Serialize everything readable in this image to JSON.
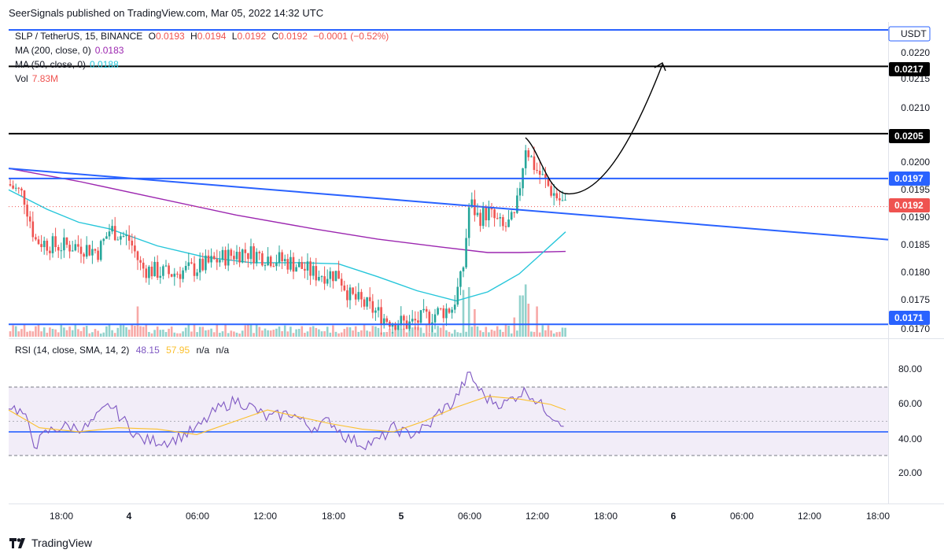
{
  "header": {
    "publisher": "SeerSignals published on TradingView.com, Mar 05, 2022 14:32 UTC"
  },
  "legend": {
    "symbol": "SLP / TetherUS, 15, BINANCE",
    "o_label": "O",
    "o_value": "0.0193",
    "h_label": "H",
    "h_value": "0.0194",
    "l_label": "L",
    "l_value": "0.0192",
    "c_label": "C",
    "c_value": "0.0192",
    "change": "−0.0001 (−0.52%)",
    "ma200_label": "MA (200, close, 0)",
    "ma200_value": "0.0183",
    "ma50_label": "MA (50, close, 0)",
    "ma50_value": "0.0188",
    "vol_label": "Vol",
    "vol_value": "7.83M"
  },
  "rsi_legend": {
    "label": "RSI (14, close, SMA, 14, 2)",
    "rsi_value": "48.15",
    "sma_value": "57.95",
    "na1": "n/a",
    "na2": "n/a"
  },
  "price_axis": {
    "currency": "USDT",
    "ticks": [
      "0.0220",
      "0.0215",
      "0.0210",
      "0.0200",
      "0.0195",
      "0.0190",
      "0.0185",
      "0.0180",
      "0.0175",
      "0.0170"
    ],
    "level_labels": [
      "0.0217",
      "0.0205",
      "0.0197",
      "0.0192",
      "0.0171"
    ]
  },
  "rsi_axis": {
    "ticks": [
      "80.00",
      "60.00",
      "40.00",
      "20.00"
    ]
  },
  "time_axis": {
    "labels": [
      "18:00",
      "4",
      "06:00",
      "12:00",
      "18:00",
      "5",
      "06:00",
      "12:00",
      "18:00",
      "6",
      "06:00",
      "12:00",
      "18:00"
    ]
  },
  "footer": {
    "brand": "TradingView"
  },
  "colors": {
    "up": "#26a69a",
    "down": "#ef5350",
    "ma200": "#9c27b0",
    "ma50": "#26c6da",
    "blue_lines": "#2962ff",
    "black_lines": "#000000",
    "rsi": "#7e57c2",
    "rsi_sma": "#fbc02d",
    "rsi_band": "#ede7f6"
  },
  "chart_data": {
    "type": "candlestick",
    "symbol": "SLP / TetherUS",
    "interval": "15",
    "price_range": [
      0.01695,
      0.02235
    ],
    "rsi_range": [
      0,
      100
    ],
    "horizontal_levels": [
      {
        "price": 0.02235,
        "color": "blue"
      },
      {
        "price": 0.0217,
        "color": "black",
        "label": "0.0217"
      },
      {
        "price": 0.0205,
        "color": "black",
        "label": "0.0205"
      },
      {
        "price": 0.0197,
        "color": "blue",
        "label": "0.0197"
      },
      {
        "price": 0.0171,
        "color": "blue",
        "label": "0.0171"
      }
    ],
    "current_price": 0.0192,
    "trendline": {
      "start": 0.01988,
      "end": 0.01861
    },
    "rsi_bands": {
      "upper": 70,
      "middle": 50,
      "lower": 30
    },
    "rsi_line_level": 42,
    "current_rsi": 48.15,
    "current_rsi_sma": 57.95
  }
}
